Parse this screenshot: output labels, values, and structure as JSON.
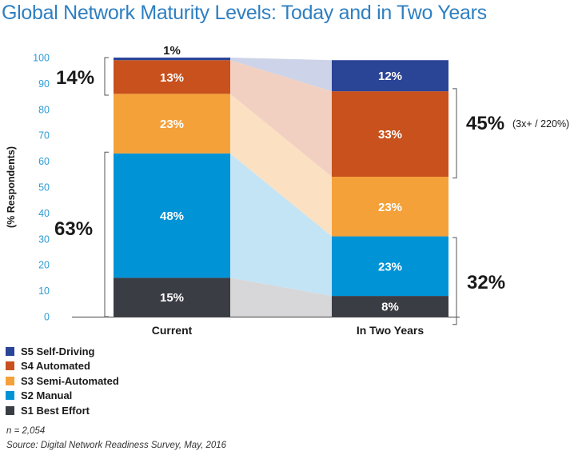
{
  "title": "Global Network Maturity Levels: Today and in Two Years",
  "chart_data": {
    "type": "bar",
    "stacked": true,
    "categories": [
      "Current",
      "In Two Years"
    ],
    "ylabel": "(% Respondents)",
    "ylim": [
      0,
      100
    ],
    "yticks": [
      0,
      10,
      20,
      30,
      40,
      50,
      60,
      70,
      80,
      90,
      100
    ],
    "series": [
      {
        "name": "S1 Best Effort",
        "values": [
          15,
          8
        ],
        "color": "#3b3d44",
        "band": "#d7d7d9"
      },
      {
        "name": "S2 Manual",
        "values": [
          48,
          23
        ],
        "color": "#0093d6",
        "band": "#c3e4f5"
      },
      {
        "name": "S3 Semi-Automated",
        "values": [
          23,
          23
        ],
        "color": "#f4a13a",
        "band": "#fbe1c2"
      },
      {
        "name": "S4 Automated",
        "values": [
          13,
          33
        ],
        "color": "#c8511d",
        "band": "#f2d0c1"
      },
      {
        "name": "S5 Self-Driving",
        "values": [
          1,
          12
        ],
        "color": "#2a4496",
        "band": "#cdd3e8"
      }
    ],
    "data_labels": [
      [
        "15%",
        "48%",
        "23%",
        "13%",
        "1%"
      ],
      [
        "8%",
        "23%",
        "23%",
        "33%",
        "12%"
      ]
    ],
    "annotations": {
      "current_top": "14%",
      "current_bottom": "63%",
      "future_top": "45%",
      "future_top_note": "(3x+ / 220%)",
      "future_bottom": "32%"
    },
    "legend_order": [
      4,
      3,
      2,
      1,
      0
    ]
  },
  "footnote": "n = 2,054",
  "source": "Source: Digital Network Readiness Survey, May, 2016"
}
